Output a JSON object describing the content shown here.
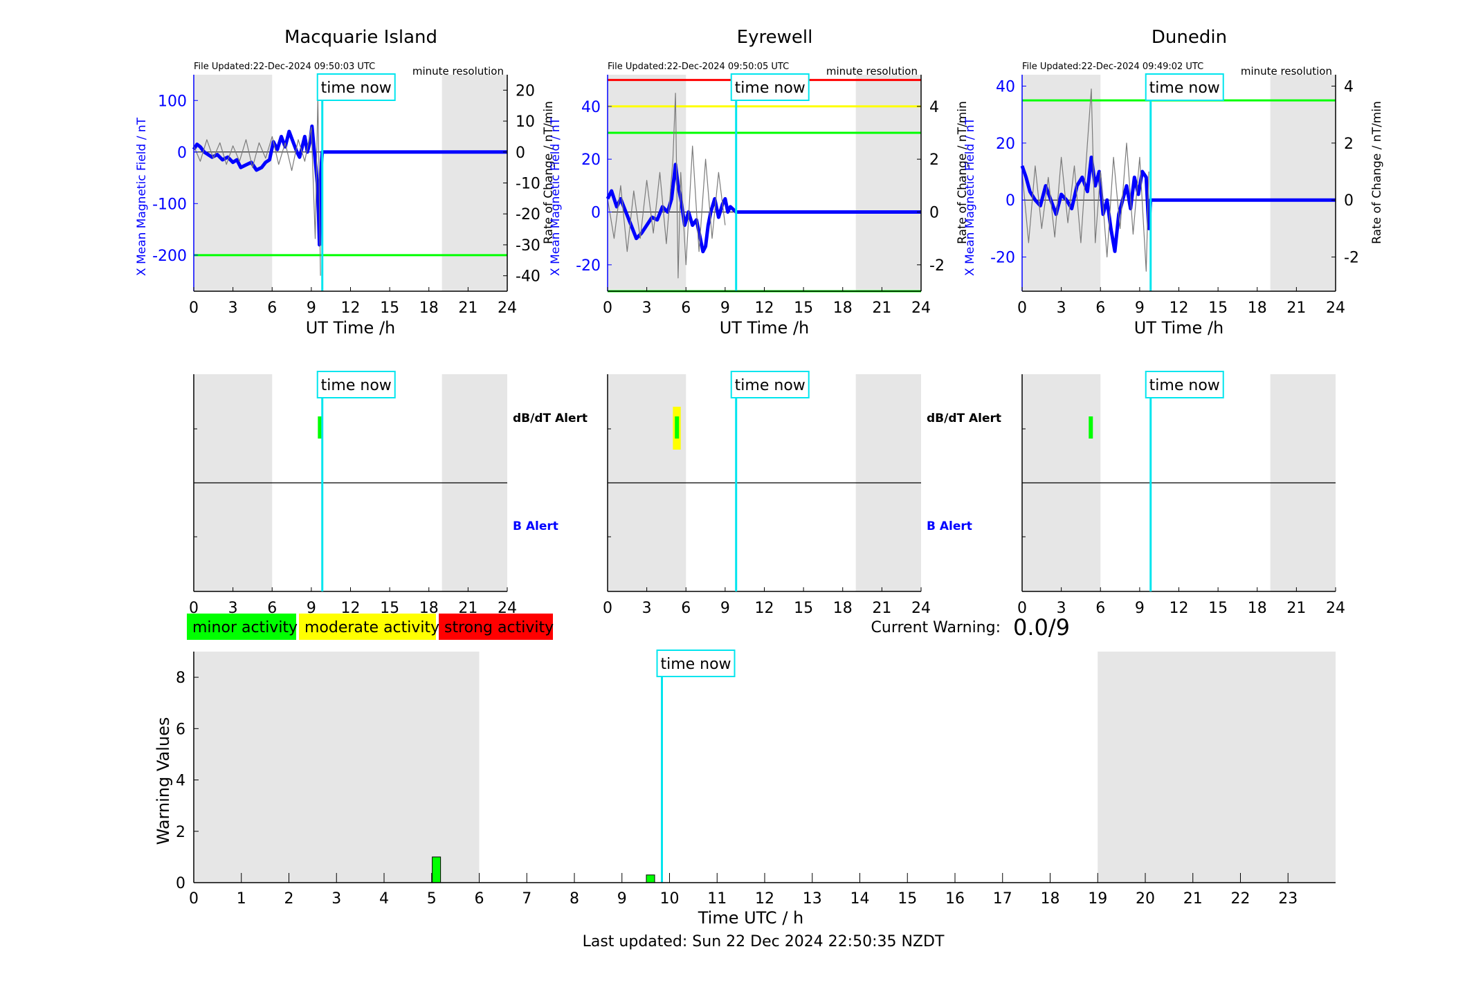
{
  "axis_label_x_station": "UT Time /h",
  "x_ticks_station": [
    "0",
    "3",
    "6",
    "9",
    "12",
    "15",
    "18",
    "21",
    "24"
  ],
  "ylabel_left": "X Mean Magnetic Field / nT",
  "ylabel_right": "Rate of Change / nT/min",
  "resolution_label": "minute resolution",
  "time_now_label": "time now",
  "time_now_hours": 9.84,
  "alert_labels": {
    "dbdt": "dB/dT Alert",
    "b": "B Alert"
  },
  "legend": [
    {
      "label": "minor activity",
      "color": "#00ff00"
    },
    {
      "label": "moderate activity",
      "color": "#ffff00"
    },
    {
      "label": "strong activity",
      "color": "#ff0000"
    }
  ],
  "current_warning": {
    "label": "Current Warning:",
    "value": "0.0/9"
  },
  "last_updated": "Last updated: Sun 22 Dec 2024 22:50:35 NZDT",
  "colors": {
    "field": "#0000ff",
    "rate": "#7a7a7a",
    "now": "#00e5ee",
    "night": "#e6e6e6",
    "green": "#00ff00",
    "yellow": "#ffff00",
    "red": "#ff0000"
  },
  "chart_data": [
    {
      "type": "line",
      "title": "Macquarie Island",
      "file_updated": "File Updated:22-Dec-2024 09:50:03 UTC",
      "xlabel": "UT Time /h",
      "xlim": [
        0,
        24
      ],
      "ylabel": "X Mean Magnetic Field / nT",
      "ylim": [
        -270,
        150
      ],
      "yticks": [
        100,
        0,
        -100,
        -200
      ],
      "y2label": "Rate of Change / nT/min",
      "y2lim": [
        -45,
        25
      ],
      "y2ticks": [
        20,
        10,
        0,
        -10,
        -20,
        -30,
        -40
      ],
      "night_shading": [
        [
          0,
          6
        ],
        [
          19,
          24
        ]
      ],
      "thresholds": [
        {
          "value": -200,
          "color": "#00ff00"
        }
      ],
      "series": [
        {
          "axis": "left",
          "color": "#0000ff",
          "x": [
            0,
            0.25,
            0.5,
            0.8,
            1.1,
            1.4,
            1.8,
            2.2,
            2.6,
            3.0,
            3.3,
            3.6,
            4.0,
            4.4,
            4.8,
            5.2,
            5.5,
            5.8,
            6.1,
            6.4,
            6.7,
            7.0,
            7.3,
            7.6,
            7.9,
            8.1,
            8.3,
            8.5,
            8.7,
            8.9,
            9.05,
            9.2,
            9.35,
            9.45,
            9.55,
            9.62,
            9.7,
            9.78,
            9.84,
            24
          ],
          "y": [
            5,
            15,
            10,
            0,
            -5,
            -10,
            -5,
            -15,
            -10,
            -20,
            -15,
            -30,
            -25,
            -20,
            -35,
            -30,
            -20,
            -15,
            20,
            5,
            30,
            10,
            40,
            20,
            0,
            -10,
            10,
            30,
            0,
            20,
            50,
            10,
            -30,
            -60,
            -120,
            -180,
            -80,
            -20,
            0,
            0
          ]
        },
        {
          "axis": "right",
          "color": "#7a7a7a",
          "x": [
            0,
            0.5,
            1,
            1.5,
            2,
            2.5,
            3,
            3.5,
            4,
            4.5,
            5,
            5.5,
            6,
            6.5,
            7,
            7.5,
            8,
            8.5,
            9,
            9.3,
            9.5,
            9.7
          ],
          "y": [
            2,
            -3,
            4,
            -2,
            3,
            -4,
            2,
            -3,
            4,
            -5,
            3,
            -2,
            5,
            -4,
            3,
            -6,
            4,
            -3,
            8,
            -28,
            18,
            -40
          ]
        }
      ],
      "alerts": {
        "dbdt": [
          {
            "t0": 9.5,
            "t1": 9.85,
            "color": "#00ff00"
          }
        ],
        "b": []
      }
    },
    {
      "type": "line",
      "title": "Eyrewell",
      "file_updated": "File Updated:22-Dec-2024 09:50:05 UTC",
      "xlabel": "UT Time /h",
      "xlim": [
        0,
        24
      ],
      "ylabel": "X Mean Magnetic Field / nT",
      "ylim": [
        -30,
        52
      ],
      "yticks": [
        40,
        20,
        0,
        -20
      ],
      "y2label": "Rate of Change / nT/min",
      "y2lim": [
        -3,
        5.2
      ],
      "y2ticks": [
        4,
        2,
        0,
        -2
      ],
      "night_shading": [
        [
          0,
          6
        ],
        [
          19,
          24
        ]
      ],
      "thresholds": [
        {
          "value": 50,
          "color": "#ff0000"
        },
        {
          "value": 40,
          "color": "#ffff00"
        },
        {
          "value": 30,
          "color": "#00ff00"
        },
        {
          "value": -30,
          "color": "#00ff00"
        }
      ],
      "series": [
        {
          "axis": "left",
          "color": "#0000ff",
          "x": [
            0,
            0.3,
            0.7,
            1.0,
            1.4,
            1.8,
            2.2,
            2.6,
            3.0,
            3.4,
            3.8,
            4.2,
            4.6,
            4.9,
            5.2,
            5.4,
            5.6,
            5.9,
            6.2,
            6.5,
            6.8,
            7.1,
            7.3,
            7.5,
            7.7,
            7.9,
            8.2,
            8.5,
            8.8,
            9.0,
            9.2,
            9.4,
            9.84,
            24
          ],
          "y": [
            5,
            8,
            2,
            5,
            0,
            -5,
            -10,
            -8,
            -5,
            -2,
            -3,
            2,
            0,
            5,
            18,
            10,
            5,
            -5,
            0,
            -5,
            -3,
            -10,
            -15,
            -13,
            -5,
            0,
            5,
            -2,
            3,
            5,
            0,
            2,
            0,
            0
          ]
        },
        {
          "axis": "right",
          "color": "#7a7a7a",
          "x": [
            0,
            0.5,
            1,
            1.5,
            2,
            2.5,
            3,
            3.5,
            4,
            4.5,
            5,
            5.2,
            5.4,
            5.6,
            6,
            6.5,
            7,
            7.5,
            8,
            8.5,
            9
          ],
          "y": [
            0.5,
            -1,
            1,
            -1.5,
            0.8,
            -1,
            1.2,
            -0.8,
            1.5,
            -1.2,
            2,
            4.5,
            -2.5,
            1.5,
            -2,
            2.5,
            -1.5,
            2,
            -1,
            1.5,
            -0.5
          ]
        }
      ],
      "alerts": {
        "dbdt": [
          {
            "t0": 5.0,
            "t1": 5.6,
            "color": "#ffff00"
          },
          {
            "t0": 5.15,
            "t1": 5.45,
            "color": "#00ff00"
          }
        ],
        "b": []
      }
    },
    {
      "type": "line",
      "title": "Dunedin",
      "file_updated": "File Updated:22-Dec-2024 09:49:02 UTC",
      "xlabel": "UT Time /h",
      "xlim": [
        0,
        24
      ],
      "ylabel": "X Mean Magnetic Field / nT",
      "ylim": [
        -32,
        44
      ],
      "yticks": [
        40,
        20,
        0,
        -20
      ],
      "y2label": "Rate of Change / nT/min",
      "y2lim": [
        -3.2,
        4.4
      ],
      "y2ticks": [
        4,
        2,
        0,
        -2
      ],
      "night_shading": [
        [
          0,
          6
        ],
        [
          19,
          24
        ]
      ],
      "thresholds": [
        {
          "value": 35,
          "color": "#00ff00"
        }
      ],
      "series": [
        {
          "axis": "left",
          "color": "#0000ff",
          "x": [
            0,
            0.3,
            0.6,
            1.0,
            1.4,
            1.8,
            2.2,
            2.6,
            3.0,
            3.4,
            3.8,
            4.2,
            4.6,
            5.0,
            5.3,
            5.6,
            5.9,
            6.2,
            6.5,
            6.8,
            7.1,
            7.4,
            7.7,
            8.0,
            8.3,
            8.6,
            8.9,
            9.2,
            9.5,
            9.7,
            9.84,
            24
          ],
          "y": [
            12,
            8,
            3,
            0,
            -2,
            5,
            0,
            -5,
            2,
            0,
            -3,
            5,
            8,
            3,
            15,
            5,
            10,
            -5,
            0,
            -10,
            -18,
            -5,
            0,
            5,
            -3,
            8,
            2,
            10,
            8,
            -10,
            0,
            0
          ]
        },
        {
          "axis": "right",
          "color": "#7a7a7a",
          "x": [
            0,
            0.5,
            1,
            1.5,
            2,
            2.5,
            3,
            3.5,
            4,
            4.5,
            5,
            5.3,
            5.6,
            6,
            6.5,
            7,
            7.5,
            8,
            8.5,
            9,
            9.5,
            9.7
          ],
          "y": [
            1,
            -1.5,
            1.2,
            -1,
            0.8,
            -1.3,
            1.5,
            -0.8,
            1.2,
            -1.5,
            2,
            3.9,
            -1.5,
            1,
            -2,
            1.5,
            -1,
            2,
            -1.2,
            1.5,
            -2.5,
            1
          ]
        }
      ],
      "alerts": {
        "dbdt": [
          {
            "t0": 5.1,
            "t1": 5.4,
            "color": "#00ff00"
          }
        ],
        "b": []
      }
    },
    {
      "type": "bar",
      "xlabel": "Time UTC / h",
      "ylabel": "Warning Values",
      "xlim": [
        0,
        24
      ],
      "ylim": [
        0,
        9
      ],
      "x_ticks": [
        "0",
        "1",
        "2",
        "3",
        "4",
        "5",
        "6",
        "7",
        "8",
        "9",
        "10",
        "11",
        "12",
        "13",
        "14",
        "15",
        "16",
        "17",
        "18",
        "19",
        "20",
        "21",
        "22",
        "23"
      ],
      "y_ticks": [
        "0",
        "2",
        "4",
        "6",
        "8"
      ],
      "night_shading": [
        [
          0,
          6
        ],
        [
          19,
          24
        ]
      ],
      "bars": [
        {
          "x": 5.1,
          "value": 1.0,
          "color": "#00ff00"
        },
        {
          "x": 9.6,
          "value": 0.3,
          "color": "#00ff00"
        }
      ]
    }
  ]
}
